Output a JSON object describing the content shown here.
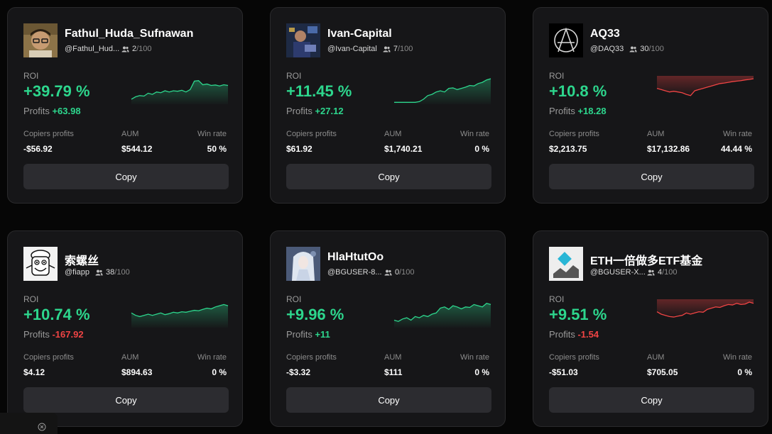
{
  "labels": {
    "roi": "ROI",
    "profits": "Profits",
    "copiers_profits": "Copiers profits",
    "aum": "AUM",
    "win_rate": "Win rate",
    "copy": "Copy"
  },
  "colors": {
    "positive": "#2dd68d",
    "negative": "#f04444",
    "card_bg": "#161618",
    "button_bg": "#2c2c30"
  },
  "traders": [
    {
      "name": "Fathul_Huda_Sufnawan",
      "handle": "@Fathul_Hud...",
      "copiers": "2",
      "copiers_max": "/100",
      "roi": "+39.79 %",
      "profits": "+63.98",
      "profits_sign": "pos",
      "copiers_profits": "-$56.92",
      "aum": "$544.12",
      "win_rate": "50 %",
      "avatar_icon": "photo-man-glasses-avatar",
      "spark": [
        0.15,
        0.25,
        0.3,
        0.28,
        0.4,
        0.35,
        0.45,
        0.42,
        0.5,
        0.45,
        0.5,
        0.48,
        0.52,
        0.45,
        0.55,
        0.9,
        0.92,
        0.75,
        0.78,
        0.72,
        0.74,
        0.7,
        0.75,
        0.72
      ]
    },
    {
      "name": "Ivan-Capital",
      "handle": "@Ivan-Capital",
      "copiers": "7",
      "copiers_max": "/100",
      "roi": "+11.45 %",
      "profits": "+27.12",
      "profits_sign": "pos",
      "copiers_profits": "$61.92",
      "aum": "$1,740.21",
      "win_rate": "0 %",
      "avatar_icon": "photo-man-night-avatar",
      "spark": [
        0.02,
        0.02,
        0.02,
        0.02,
        0.02,
        0.02,
        0.05,
        0.15,
        0.3,
        0.35,
        0.45,
        0.5,
        0.45,
        0.6,
        0.62,
        0.55,
        0.6,
        0.65,
        0.72,
        0.7,
        0.8,
        0.85,
        0.95,
        1.0
      ]
    },
    {
      "name": "AQ33",
      "handle": "@DAQ33",
      "copiers": "30",
      "copiers_max": "/100",
      "roi": "+10.8 %",
      "profits": "+18.28",
      "profits_sign": "pos",
      "copiers_profits": "$2,213.75",
      "aum": "$17,132.86",
      "win_rate": "44.44 %",
      "avatar_icon": "anarchy-logo-avatar",
      "spark": [
        0.6,
        0.55,
        0.5,
        0.45,
        0.48,
        0.45,
        0.42,
        0.35,
        0.3,
        0.5,
        0.55,
        0.6,
        0.65,
        0.7,
        0.75,
        0.8,
        0.82,
        0.85,
        0.88,
        0.9,
        0.92,
        0.95,
        0.97,
        1.0
      ]
    },
    {
      "name": "索螺丝",
      "handle": "@fiapp",
      "copiers": "38",
      "copiers_max": "/100",
      "roi": "+10.74 %",
      "profits": "-167.92",
      "profits_sign": "neg",
      "copiers_profits": "$4.12",
      "aum": "$894.63",
      "win_rate": "0 %",
      "avatar_icon": "cartoon-character-avatar",
      "spark": [
        0.55,
        0.45,
        0.4,
        0.45,
        0.5,
        0.45,
        0.5,
        0.55,
        0.48,
        0.52,
        0.58,
        0.55,
        0.6,
        0.58,
        0.62,
        0.66,
        0.64,
        0.7,
        0.75,
        0.72,
        0.8,
        0.85,
        0.9,
        0.85
      ]
    },
    {
      "name": "HlaHtutOo",
      "handle": "@BGUSER-8...",
      "copiers": "0",
      "copiers_max": "/100",
      "roi": "+9.96 %",
      "profits": "+11",
      "profits_sign": "pos",
      "copiers_profits": "-$3.32",
      "aum": "$111",
      "win_rate": "0 %",
      "avatar_icon": "fantasy-character-avatar",
      "spark": [
        0.25,
        0.2,
        0.3,
        0.35,
        0.25,
        0.4,
        0.35,
        0.45,
        0.4,
        0.5,
        0.55,
        0.75,
        0.8,
        0.7,
        0.85,
        0.8,
        0.72,
        0.8,
        0.78,
        0.9,
        0.85,
        0.8,
        0.95,
        0.9
      ]
    },
    {
      "name": "ETH一倍做多ETF基金",
      "handle": "@BGUSER-X...",
      "copiers": "4",
      "copiers_max": "/100",
      "roi": "+9.51 %",
      "profits": "-1.54",
      "profits_sign": "neg",
      "copiers_profits": "-$51.03",
      "aum": "$705.05",
      "win_rate": "0 %",
      "avatar_icon": "eth-diamond-logo-avatar",
      "spark": [
        0.6,
        0.5,
        0.45,
        0.4,
        0.38,
        0.42,
        0.45,
        0.55,
        0.5,
        0.55,
        0.6,
        0.58,
        0.7,
        0.75,
        0.8,
        0.78,
        0.85,
        0.9,
        0.88,
        0.95,
        0.9,
        0.92,
        1.0,
        0.95
      ]
    }
  ]
}
